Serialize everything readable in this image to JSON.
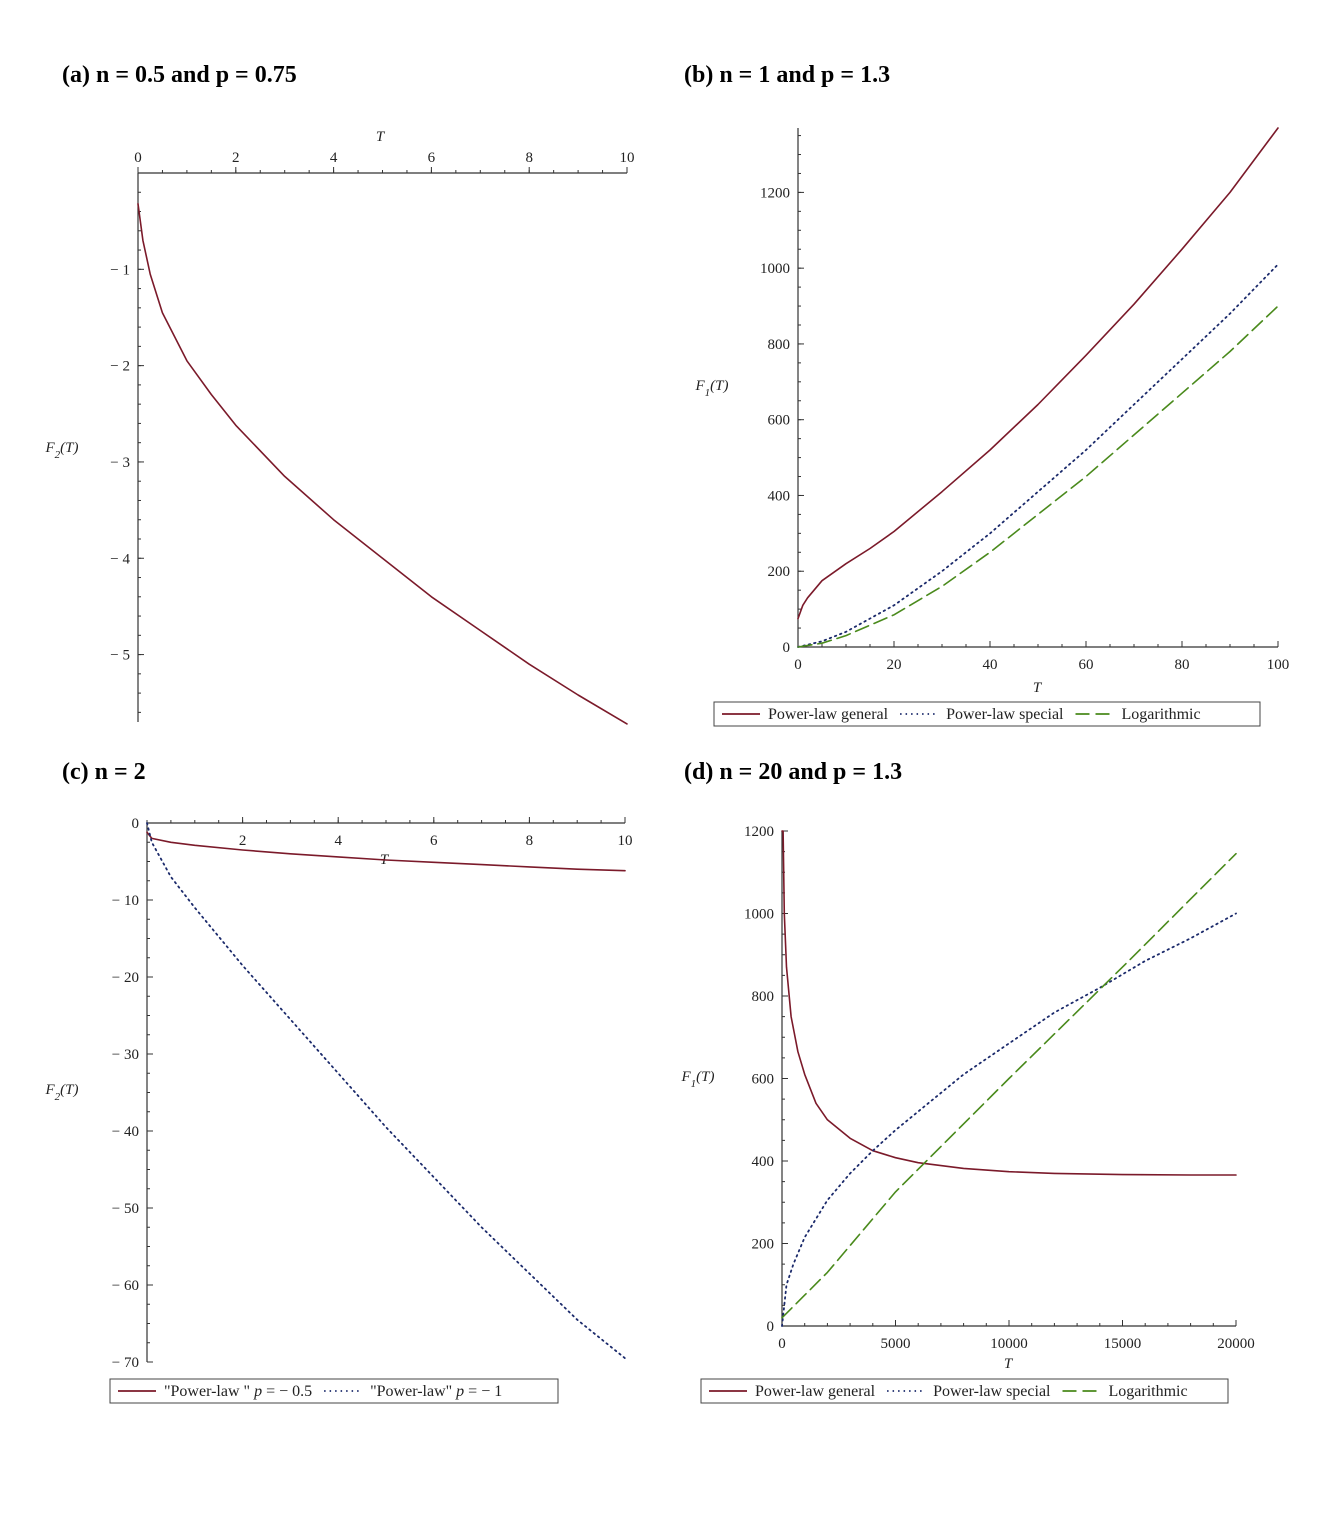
{
  "captions": {
    "a": "(a) n = 0.5 and p = 0.75",
    "b": "(b) n = 1 and p = 1.3",
    "c": "(c) n = 2",
    "d": "(d) n = 20 and p = 1.3"
  },
  "colors": {
    "maroon": "#7b1a2a",
    "navy": "#1b2a6b",
    "green": "#4a8a1c",
    "axis": "#333333"
  },
  "chart_data": [
    {
      "id": "a",
      "type": "line",
      "xlabel": "T",
      "ylabel": "F_2(T)",
      "xlim": [
        0,
        10
      ],
      "ylim": [
        -5.7,
        0
      ],
      "x_ticks": [
        0,
        2,
        4,
        6,
        8,
        10
      ],
      "y_ticks": [
        -1,
        -2,
        -3,
        -4,
        -5
      ],
      "grid": false,
      "legend": null,
      "series": [
        {
          "style": "solid",
          "color": "maroon",
          "x": [
            0,
            0.1,
            0.25,
            0.5,
            1,
            1.5,
            2,
            3,
            4,
            5,
            6,
            7,
            8,
            9,
            10
          ],
          "y": [
            -0.32,
            -0.7,
            -1.05,
            -1.45,
            -1.95,
            -2.3,
            -2.62,
            -3.15,
            -3.6,
            -4.0,
            -4.4,
            -4.75,
            -5.1,
            -5.42,
            -5.72
          ]
        }
      ]
    },
    {
      "id": "b",
      "type": "line",
      "xlabel": "T",
      "ylabel": "F_1(T)",
      "xlim": [
        0,
        100
      ],
      "ylim": [
        0,
        1370
      ],
      "x_ticks": [
        0,
        20,
        40,
        60,
        80,
        100
      ],
      "y_ticks": [
        0,
        200,
        400,
        600,
        800,
        1000,
        1200
      ],
      "grid": false,
      "legend": "bottom",
      "series": [
        {
          "name": "Power-law general",
          "style": "solid",
          "color": "maroon",
          "x": [
            0,
            1,
            2,
            5,
            10,
            15,
            20,
            30,
            40,
            50,
            60,
            70,
            80,
            90,
            100
          ],
          "y": [
            75,
            110,
            130,
            175,
            220,
            260,
            305,
            410,
            520,
            640,
            770,
            905,
            1050,
            1200,
            1370
          ]
        },
        {
          "name": "Power-law special",
          "style": "dotted",
          "color": "navy",
          "x": [
            0,
            5,
            10,
            20,
            30,
            40,
            50,
            60,
            70,
            80,
            90,
            100
          ],
          "y": [
            0,
            15,
            40,
            110,
            200,
            300,
            410,
            520,
            640,
            760,
            880,
            1010
          ]
        },
        {
          "name": "Logarithmic",
          "style": "dashed",
          "color": "green",
          "x": [
            0,
            5,
            10,
            20,
            30,
            40,
            50,
            60,
            70,
            80,
            90,
            100
          ],
          "y": [
            0,
            10,
            30,
            85,
            160,
            250,
            350,
            450,
            560,
            670,
            780,
            900
          ]
        }
      ]
    },
    {
      "id": "c",
      "type": "line",
      "xlabel": "T",
      "ylabel": "F_2(T)",
      "xlim": [
        0,
        10
      ],
      "ylim": [
        -70,
        0
      ],
      "x_ticks": [
        2,
        4,
        6,
        8,
        10
      ],
      "y_ticks": [
        0,
        -10,
        -20,
        -30,
        -40,
        -50,
        -60,
        -70
      ],
      "grid": false,
      "legend": "bottom",
      "series": [
        {
          "name": "\"Power-law \" p = − 0.5",
          "style": "solid",
          "color": "maroon",
          "x": [
            0,
            0.1,
            0.5,
            1,
            2,
            3,
            4,
            5,
            6,
            7,
            8,
            9,
            10
          ],
          "y": [
            -1.2,
            -2.0,
            -2.5,
            -2.9,
            -3.5,
            -4.0,
            -4.4,
            -4.8,
            -5.1,
            -5.4,
            -5.7,
            -6.0,
            -6.2
          ]
        },
        {
          "name": "\"Power-law\" p = − 1",
          "style": "dotted",
          "color": "navy",
          "x": [
            0,
            0.1,
            0.5,
            1,
            2,
            3,
            4,
            5,
            6,
            7,
            8,
            9,
            10
          ],
          "y": [
            0,
            -2.5,
            -7,
            -11,
            -18.5,
            -25.5,
            -32.5,
            -39.5,
            -46,
            -52.5,
            -58.5,
            -64.5,
            -69.5
          ]
        }
      ]
    },
    {
      "id": "d",
      "type": "line",
      "xlabel": "T",
      "ylabel": "F_1(T)",
      "xlim": [
        0,
        20000
      ],
      "ylim": [
        0,
        1200
      ],
      "x_ticks": [
        0,
        5000,
        10000,
        15000,
        20000
      ],
      "y_ticks": [
        0,
        200,
        400,
        600,
        800,
        1000,
        1200
      ],
      "grid": false,
      "legend": "bottom",
      "series": [
        {
          "name": "Power-law general",
          "style": "solid",
          "color": "maroon",
          "x": [
            0,
            50,
            100,
            200,
            400,
            700,
            1000,
            1500,
            2000,
            3000,
            4000,
            5000,
            6000,
            8000,
            10000,
            12000,
            15000,
            18000,
            20000
          ],
          "y": [
            1200,
            1200,
            1000,
            870,
            750,
            665,
            610,
            540,
            500,
            455,
            425,
            408,
            396,
            382,
            374,
            370,
            367,
            366,
            366
          ]
        },
        {
          "name": "Power-law special",
          "style": "dotted",
          "color": "navy",
          "x": [
            0,
            200,
            500,
            1000,
            2000,
            3000,
            4000,
            5000,
            6000,
            8000,
            10000,
            12000,
            14000,
            16000,
            18000,
            20000
          ],
          "y": [
            0,
            100,
            150,
            215,
            305,
            370,
            425,
            475,
            520,
            610,
            685,
            760,
            820,
            885,
            940,
            1000
          ]
        },
        {
          "name": "Logarithmic",
          "style": "dashed",
          "color": "green",
          "x": [
            0,
            1000,
            2000,
            5000,
            10000,
            15000,
            20000
          ],
          "y": [
            20,
            75,
            130,
            325,
            600,
            870,
            1145
          ]
        }
      ]
    }
  ]
}
